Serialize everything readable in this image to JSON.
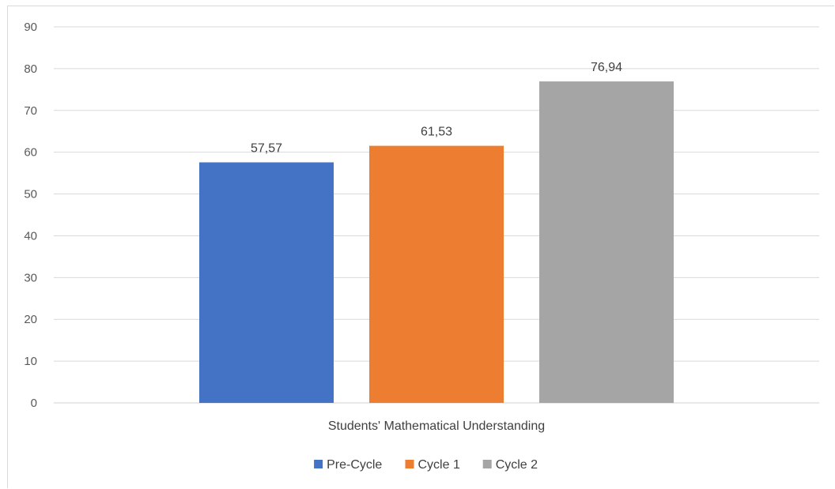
{
  "chart_data": {
    "type": "bar",
    "categories": [
      "Students'  Mathematical Understanding"
    ],
    "series": [
      {
        "name": "Pre-Cycle",
        "values": [
          57.57
        ],
        "label": "57,57",
        "color": "#4472c4"
      },
      {
        "name": "Cycle 1",
        "values": [
          61.53
        ],
        "label": "61,53",
        "color": "#ed7d31"
      },
      {
        "name": "Cycle 2",
        "values": [
          76.94
        ],
        "label": "76,94",
        "color": "#a5a5a5"
      }
    ],
    "ylim": [
      0,
      90
    ],
    "yticks": [
      0,
      10,
      20,
      30,
      40,
      50,
      60,
      70,
      80,
      90
    ],
    "grid": true,
    "legend": "bottom"
  }
}
